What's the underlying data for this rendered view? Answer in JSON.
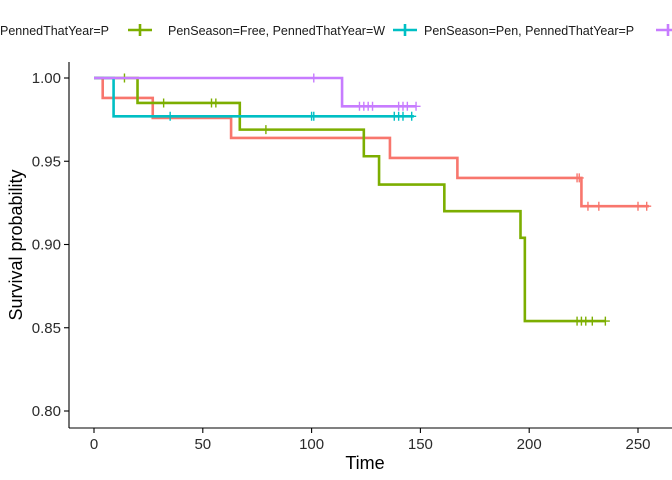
{
  "chart_data": {
    "type": "line",
    "step": true,
    "xlabel": "Time",
    "ylabel": "Survival probability",
    "xlim": [
      0,
      255
    ],
    "ylim": [
      0.8,
      1.0
    ],
    "x_ticks": [
      0,
      50,
      100,
      150,
      200,
      250
    ],
    "y_ticks": [
      0.8,
      0.85,
      0.9,
      0.95,
      1.0
    ],
    "x_tick_labels": [
      "0",
      "50",
      "100",
      "150",
      "200",
      "250"
    ],
    "y_tick_labels": [
      "0.80",
      "0.85",
      "0.90",
      "0.95",
      "1.00"
    ],
    "grid": false,
    "legend_position": "top",
    "series": [
      {
        "name": "PennedThatYear=P",
        "color": "#F8766D",
        "steps": [
          [
            0,
            1.0
          ],
          [
            4,
            0.988
          ],
          [
            27,
            0.976
          ],
          [
            63,
            0.964
          ],
          [
            136,
            0.952
          ],
          [
            167,
            0.94
          ],
          [
            224,
            0.923
          ],
          [
            255,
            0.923
          ]
        ],
        "censor_x": [
          222,
          223,
          227,
          232,
          250,
          254
        ],
        "censor_y": [
          0.94,
          0.94,
          0.923,
          0.923,
          0.923,
          0.923
        ]
      },
      {
        "name": "PenSeason=Free, PennedThatYear=W",
        "color": "#7CAE00",
        "steps": [
          [
            0,
            1.0
          ],
          [
            20,
            0.985
          ],
          [
            67,
            0.969
          ],
          [
            124,
            0.953
          ],
          [
            131,
            0.936
          ],
          [
            161,
            0.92
          ],
          [
            196,
            0.904
          ],
          [
            198,
            0.854
          ],
          [
            235,
            0.854
          ]
        ],
        "censor_x": [
          14,
          32,
          54,
          56,
          79,
          222,
          224,
          226,
          229,
          235
        ],
        "censor_y": [
          1.0,
          0.985,
          0.985,
          0.985,
          0.969,
          0.854,
          0.854,
          0.854,
          0.854,
          0.854
        ]
      },
      {
        "name": "PenSeason=Pen, PennedThatYear=P",
        "color": "#00BFC4",
        "steps": [
          [
            0,
            1.0
          ],
          [
            9,
            0.977
          ],
          [
            147,
            0.977
          ]
        ],
        "censor_x": [
          35,
          100,
          101,
          138,
          140,
          142,
          146
        ],
        "censor_y": [
          0.977,
          0.977,
          0.977,
          0.977,
          0.977,
          0.977,
          0.977
        ]
      },
      {
        "name": "",
        "color": "#C77CFF",
        "steps": [
          [
            0,
            1.0
          ],
          [
            114,
            0.983
          ],
          [
            148,
            0.983
          ]
        ],
        "censor_x": [
          101,
          122,
          124,
          126,
          128,
          140,
          142,
          144,
          148
        ],
        "censor_y": [
          1.0,
          0.983,
          0.983,
          0.983,
          0.983,
          0.983,
          0.983,
          0.983,
          0.983
        ]
      }
    ]
  }
}
